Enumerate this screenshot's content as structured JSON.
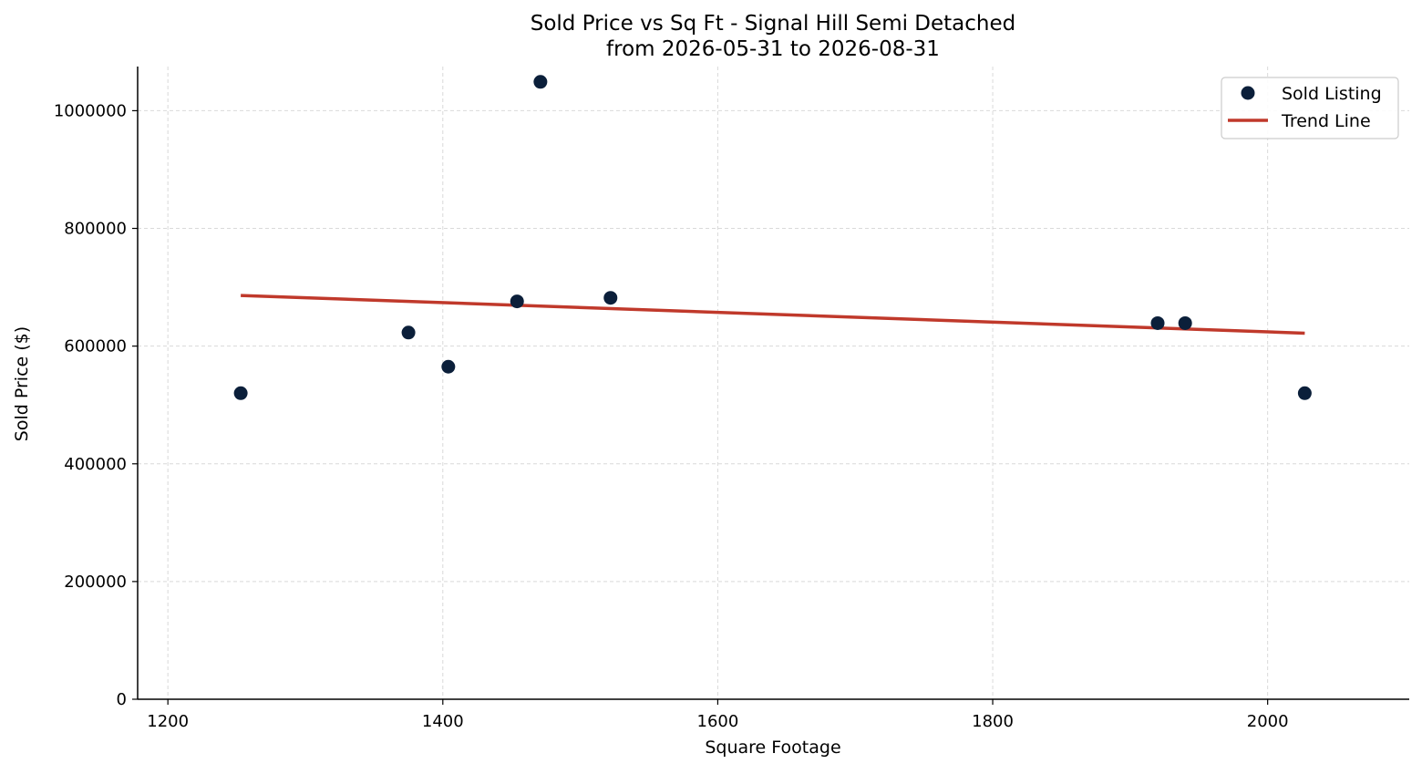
{
  "chart_data": {
    "type": "scatter",
    "title": "Sold Price vs Sq Ft - Signal Hill Semi Detached",
    "subtitle": "from 2026-05-31 to 2026-08-31",
    "xlabel": "Square Footage",
    "ylabel": "Sold Price ($)",
    "xlim": [
      1178,
      2103
    ],
    "ylim": [
      0,
      1075000
    ],
    "xticks": [
      1200,
      1400,
      1600,
      1800,
      2000
    ],
    "yticks": [
      0,
      200000,
      400000,
      600000,
      800000,
      1000000
    ],
    "grid": true,
    "legend_position": "top-right",
    "series": [
      {
        "name": "Sold Listing",
        "type": "scatter",
        "color": "#0b1f3a",
        "points": [
          {
            "x": 1253,
            "y": 520000
          },
          {
            "x": 1375,
            "y": 623000
          },
          {
            "x": 1404,
            "y": 565000
          },
          {
            "x": 1454,
            "y": 676000
          },
          {
            "x": 1471,
            "y": 1049000
          },
          {
            "x": 1522,
            "y": 682000
          },
          {
            "x": 1920,
            "y": 639000
          },
          {
            "x": 1940,
            "y": 639000
          },
          {
            "x": 2027,
            "y": 520000
          }
        ]
      },
      {
        "name": "Trend Line",
        "type": "line",
        "color": "#c0392b",
        "points": [
          {
            "x": 1253,
            "y": 686000
          },
          {
            "x": 2027,
            "y": 622000
          }
        ]
      }
    ]
  }
}
